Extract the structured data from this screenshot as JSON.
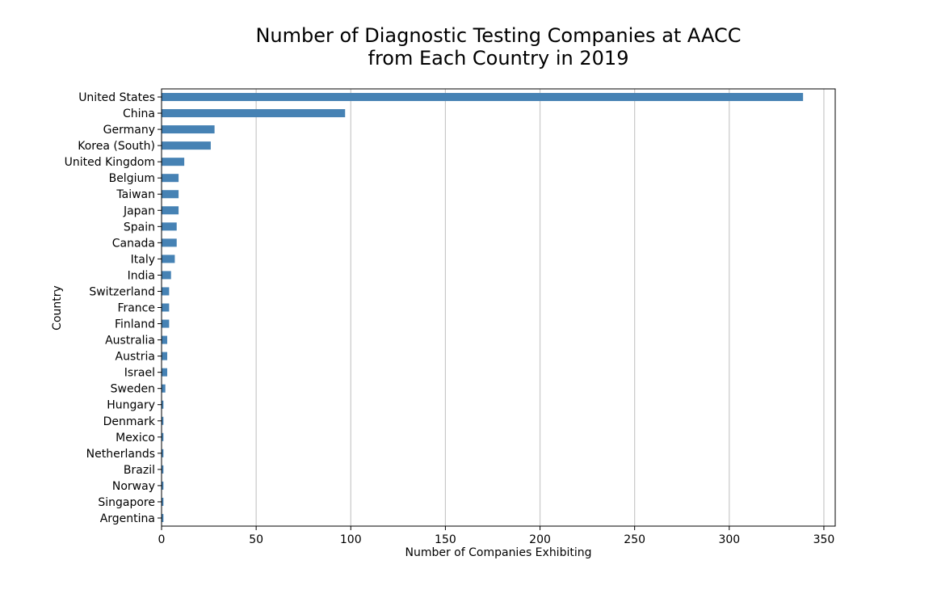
{
  "chart_data": {
    "type": "bar",
    "orientation": "horizontal",
    "title": [
      "Number of Diagnostic Testing Companies at AACC",
      "from Each Country in 2019"
    ],
    "xlabel": "Number of Companies Exhibiting",
    "ylabel": "Country",
    "xlim": [
      0,
      356
    ],
    "xticks": [
      0,
      50,
      100,
      150,
      200,
      250,
      300,
      350
    ],
    "grid": "vertical",
    "bar_color": "#4682b4",
    "categories": [
      "United States",
      "China",
      "Germany",
      "Korea (South)",
      "United Kingdom",
      "Belgium",
      "Taiwan",
      "Japan",
      "Spain",
      "Canada",
      "Italy",
      "India",
      "Switzerland",
      "France",
      "Finland",
      "Australia",
      "Austria",
      "Israel",
      "Sweden",
      "Hungary",
      "Denmark",
      "Mexico",
      "Netherlands",
      "Brazil",
      "Norway",
      "Singapore",
      "Argentina"
    ],
    "values": [
      339,
      97,
      28,
      26,
      12,
      9,
      9,
      9,
      8,
      8,
      7,
      5,
      4,
      4,
      4,
      3,
      3,
      3,
      2,
      1,
      1,
      1,
      1,
      1,
      1,
      1,
      1
    ]
  }
}
